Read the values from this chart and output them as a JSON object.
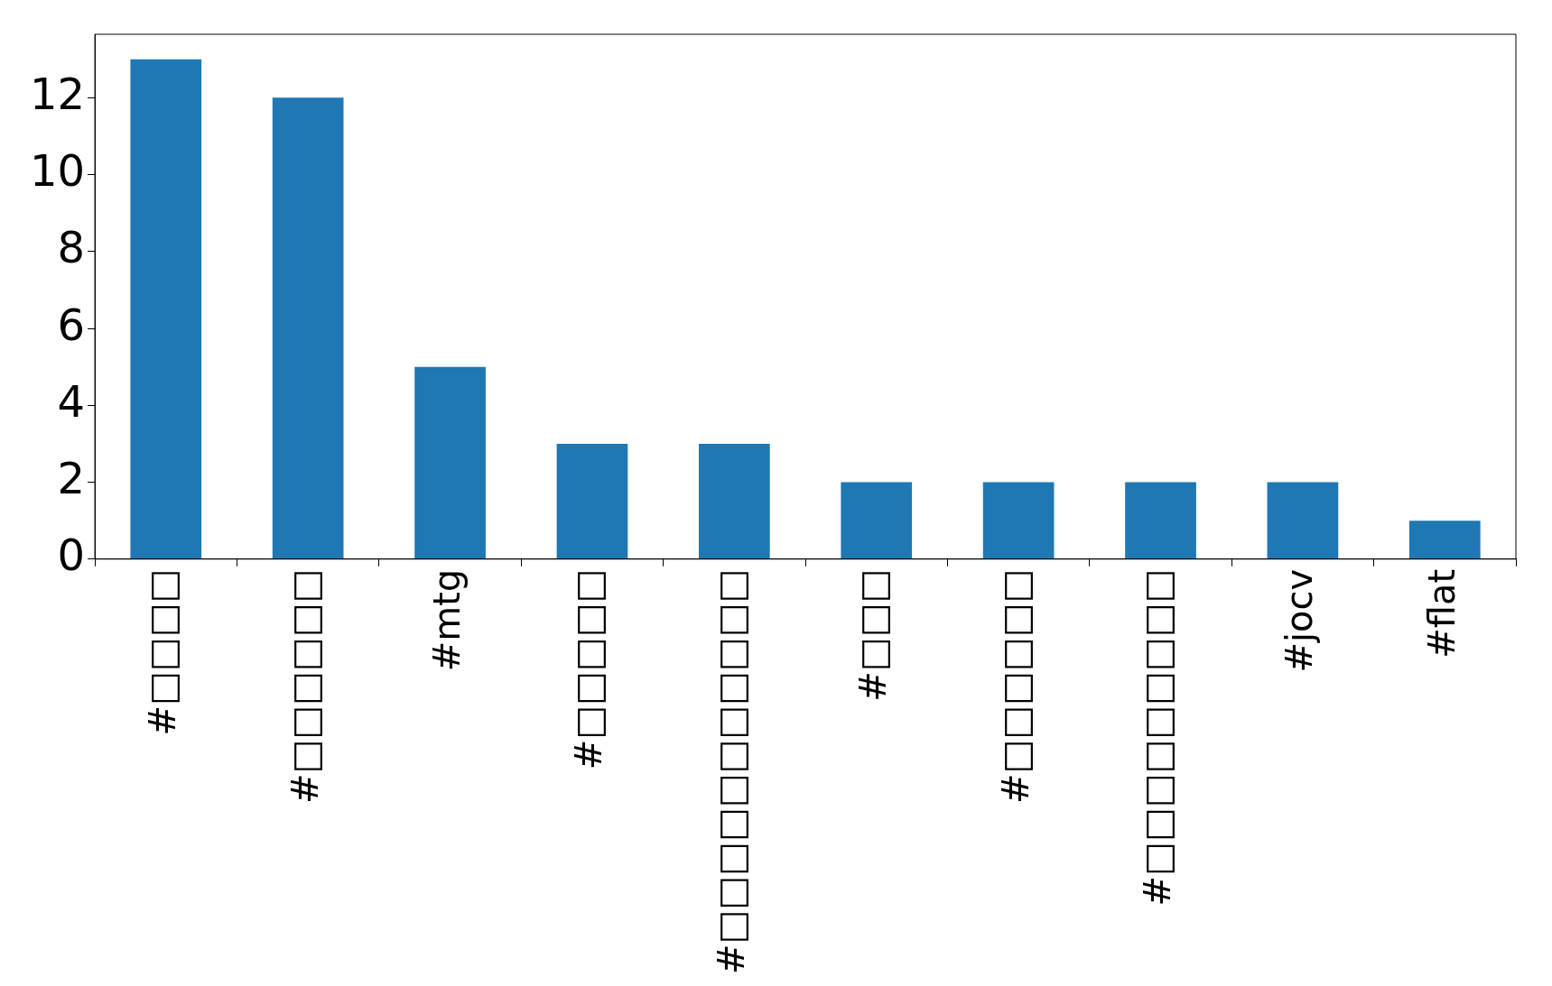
{
  "chart_data": {
    "type": "bar",
    "categories": [
      "#□□□□",
      "#□□□□□□",
      "#mtg",
      "#□□□□□",
      "#□□□□□□□□□□□",
      "#□□□",
      "#□□□□□□",
      "#□□□□□□□□□",
      "#jocv",
      "#flat"
    ],
    "values": [
      13,
      12,
      5,
      3,
      3,
      2,
      2,
      2,
      2,
      1
    ],
    "color": "#1f77b4",
    "ylim": [
      0,
      13.65
    ],
    "yticks": [
      0,
      2,
      4,
      6,
      8,
      10,
      12
    ],
    "grid": false,
    "legend": false
  }
}
